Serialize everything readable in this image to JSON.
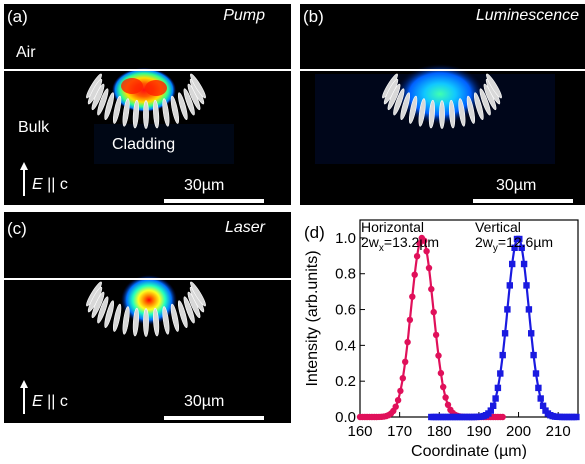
{
  "panels": {
    "a": {
      "letter": "(a)",
      "title": "Pump",
      "air_label": "Air",
      "bulk_label": "Bulk",
      "cladding_label": "Cladding",
      "pol_E": "E",
      "pol_rest": " || c",
      "scalebar": "30µm"
    },
    "b": {
      "letter": "(b)",
      "title": "Luminescence",
      "scalebar": "30µm"
    },
    "c": {
      "letter": "(c)",
      "title": "Laser",
      "pol_E": "E",
      "pol_rest": " || c",
      "scalebar": "30µm"
    }
  },
  "colors": {
    "horizontal": "#e0105a",
    "vertical": "#1a1ae0",
    "panel_bg": "#000000",
    "interface_line": "#ffffff"
  },
  "chart_data": {
    "type": "scatter",
    "panel_label": "(d)",
    "xlabel": "Coordinate (µm)",
    "ylabel": "Intensity (arb.units)",
    "xlim": [
      160,
      215
    ],
    "ylim": [
      0,
      1.1
    ],
    "xticks": [
      "160",
      "170",
      "180",
      "190",
      "200",
      "210"
    ],
    "yticks": [
      "0.0",
      "0.2",
      "0.4",
      "0.6",
      "0.8",
      "1.0"
    ],
    "annotations": {
      "horizontal": {
        "line1": "Horizontal",
        "w_prefix": "2w",
        "w_sub": "x",
        "w_value": "=13.2µm"
      },
      "vertical": {
        "line1": "Vertical",
        "w_prefix": "2w",
        "w_sub": "y",
        "w_value": "=12.6µm"
      }
    },
    "series": [
      {
        "center": 175.7,
        "fwhm": 6.6,
        "x_range": [
          160,
          196
        ],
        "x_step": 0.6,
        "marker": "circle"
      },
      {
        "center": 199.9,
        "fwhm": 6.3,
        "x_range": [
          178,
          215
        ],
        "x_step": 0.6,
        "marker": "square"
      }
    ]
  }
}
